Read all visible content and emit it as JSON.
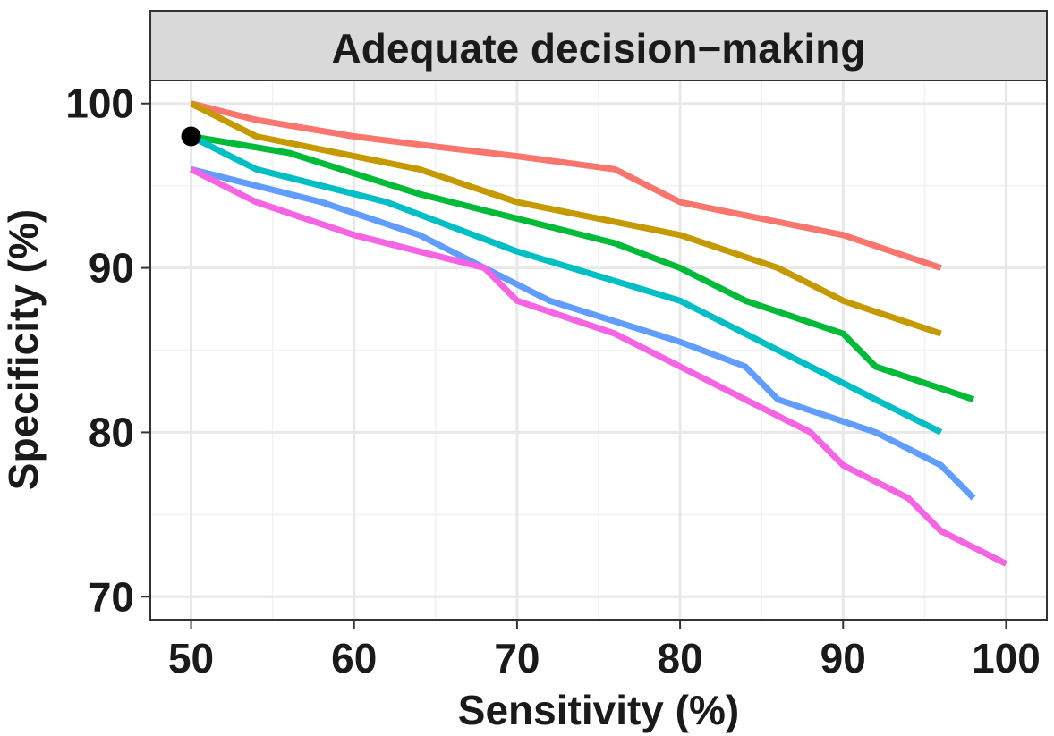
{
  "chart_data": {
    "type": "line",
    "title": "Adequate decision−making",
    "xlabel": "Sensitivity (%)",
    "ylabel": "Specificity (%)",
    "xlim": [
      47.5,
      102.5
    ],
    "ylim": [
      68.6,
      101.4
    ],
    "x_ticks": [
      50,
      60,
      70,
      80,
      90,
      100
    ],
    "y_ticks": [
      70,
      80,
      90,
      100
    ],
    "grid": true,
    "legend": "none",
    "series": [
      {
        "color": "#F8766D",
        "x": [
          50,
          54,
          60,
          64,
          70,
          76,
          80,
          84,
          90,
          96
        ],
        "y": [
          100,
          99,
          98,
          97.5,
          96.8,
          96,
          94,
          93.2,
          92,
          90
        ]
      },
      {
        "color": "#C49A00",
        "x": [
          50,
          54,
          60,
          64,
          70,
          76,
          80,
          86,
          90,
          96
        ],
        "y": [
          100,
          98,
          96.8,
          96,
          94,
          92.8,
          92,
          90,
          88,
          86
        ]
      },
      {
        "color": "#00BA38",
        "x": [
          50,
          56,
          64,
          70,
          76,
          80,
          84,
          90,
          92,
          98
        ],
        "y": [
          98,
          97,
          94.5,
          93,
          91.5,
          90,
          88,
          86,
          84,
          82
        ]
      },
      {
        "color": "#00BFC4",
        "x": [
          50,
          54,
          62,
          70,
          80,
          86,
          92,
          96
        ],
        "y": [
          98,
          96,
          94,
          91,
          88,
          85,
          82,
          80
        ]
      },
      {
        "color": "#619CFF",
        "x": [
          50,
          54,
          58,
          64,
          68,
          70,
          72,
          80,
          84,
          86,
          92,
          96,
          98
        ],
        "y": [
          96,
          95,
          94,
          92,
          90,
          89,
          88,
          85.5,
          84,
          82,
          80,
          78,
          76
        ]
      },
      {
        "color": "#F564E3",
        "x": [
          50,
          54,
          60,
          64,
          68,
          70,
          76,
          80,
          84,
          88,
          90,
          94,
          96,
          100
        ],
        "y": [
          96,
          94,
          92,
          91,
          90,
          88,
          86,
          84,
          82,
          80,
          78,
          76,
          74,
          72
        ]
      }
    ],
    "points": [
      {
        "x": 50,
        "y": 98,
        "color": "#000000"
      }
    ]
  }
}
